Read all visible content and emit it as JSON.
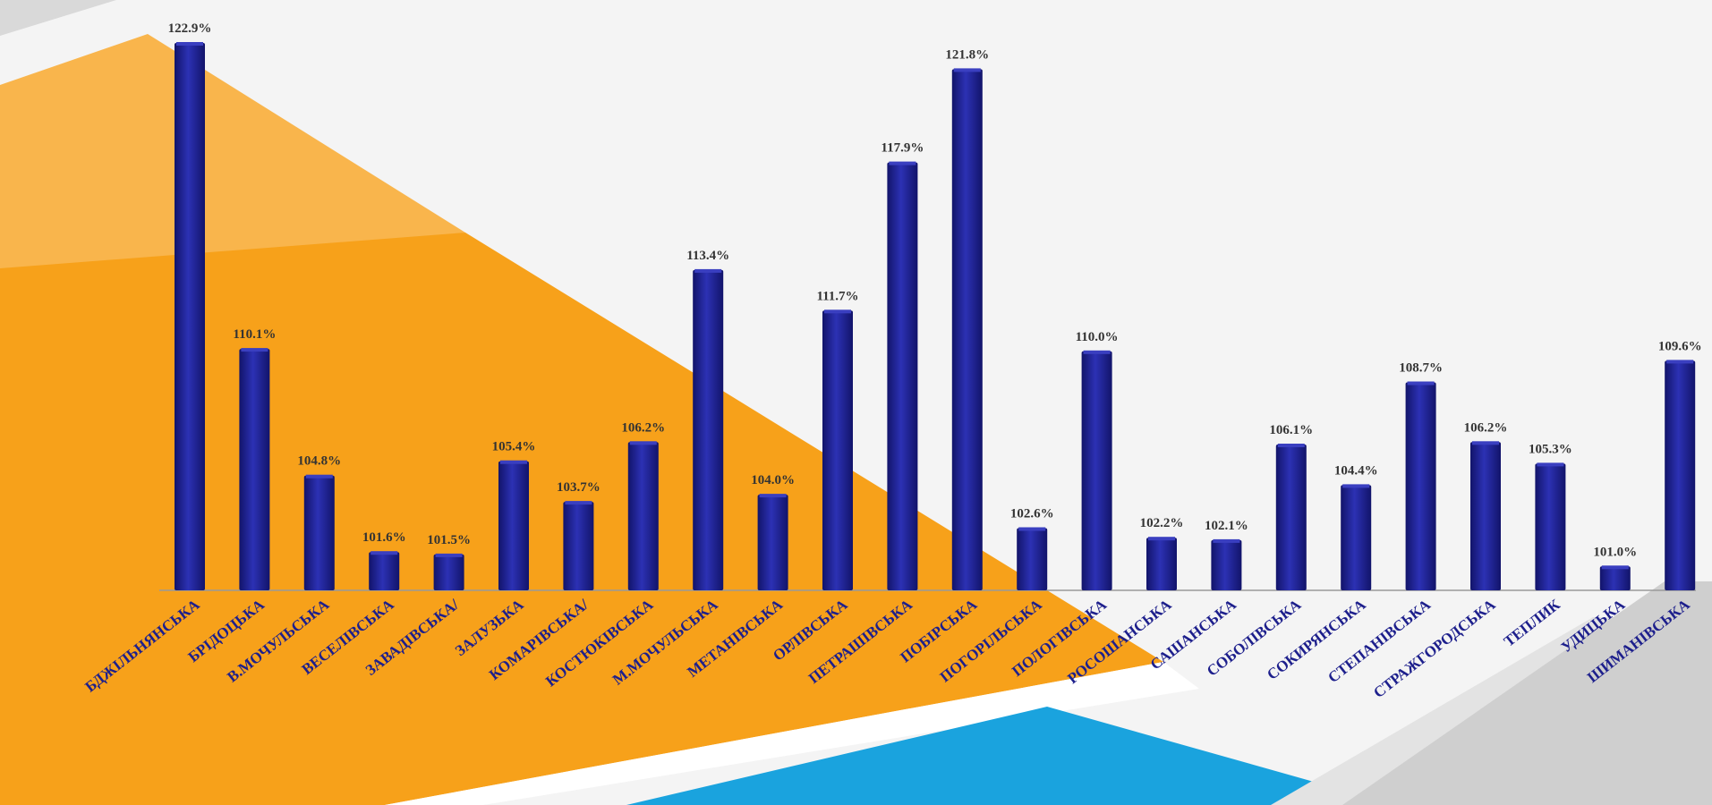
{
  "chart_data": {
    "type": "bar",
    "categories": [
      "БДЖІЛЬНЯНСЬКА",
      "БРІДОЦЬКА",
      "В.МОЧУЛЬСЬКА",
      "ВЕСЕЛІВСЬКА",
      "ЗАВАДІВСЬКА/",
      "ЗАЛУЗЬКА",
      "КОМАРІВСЬКА/",
      "КОСТЮКІВСЬКА",
      "М.МОЧУЛЬСЬКА",
      "МЕТАНІВСЬКА",
      "ОРЛІВСЬКА",
      "ПЕТРАШІВСЬКА",
      "ПОБІРСЬКА",
      "ПОГОРІЛЬСЬКА",
      "ПОЛОГІВСЬКА",
      "РОСОШАНСЬКА",
      "САШАНСЬКА",
      "СОБОЛІВСЬКА",
      "СОКИРЯНСЬКА",
      "СТЕПАНІВСЬКА",
      "СТРАЖГОРОДСЬКА",
      "ТЕПЛИК",
      "УДИЦЬКА",
      "ШИМАНІВСЬКА"
    ],
    "values": [
      122.9,
      110.1,
      104.8,
      101.6,
      101.5,
      105.4,
      103.7,
      106.2,
      113.4,
      104.0,
      111.7,
      117.9,
      121.8,
      102.6,
      110.0,
      102.2,
      102.1,
      106.1,
      104.4,
      108.7,
      106.2,
      105.3,
      101.0,
      109.6
    ],
    "labels": [
      "122.9%",
      "110.1%",
      "104.8%",
      "101.6%",
      "101.5%",
      "105.4%",
      "103.7%",
      "106.2%",
      "113.4%",
      "104.0%",
      "111.7%",
      "117.9%",
      "121.8%",
      "102.6%",
      "110.0%",
      "102.2%",
      "102.1%",
      "106.1%",
      "104.4%",
      "108.7%",
      "106.2%",
      "105.3%",
      "101.0%",
      "109.6%"
    ],
    "title": "",
    "xlabel": "",
    "ylabel": "",
    "bar_color": "#1d1f8c",
    "bar_highlight": "#3a3fc0",
    "tick_color": "#1d1f8c",
    "grid": false,
    "legend": "none"
  },
  "background": {
    "base": "#f4f4f4",
    "orange": "#f7a11a",
    "orange_light": "#f9b54c",
    "blue": "#1aa3de",
    "gray": "#cfcfcf",
    "gray_light": "#e3e3e3"
  }
}
